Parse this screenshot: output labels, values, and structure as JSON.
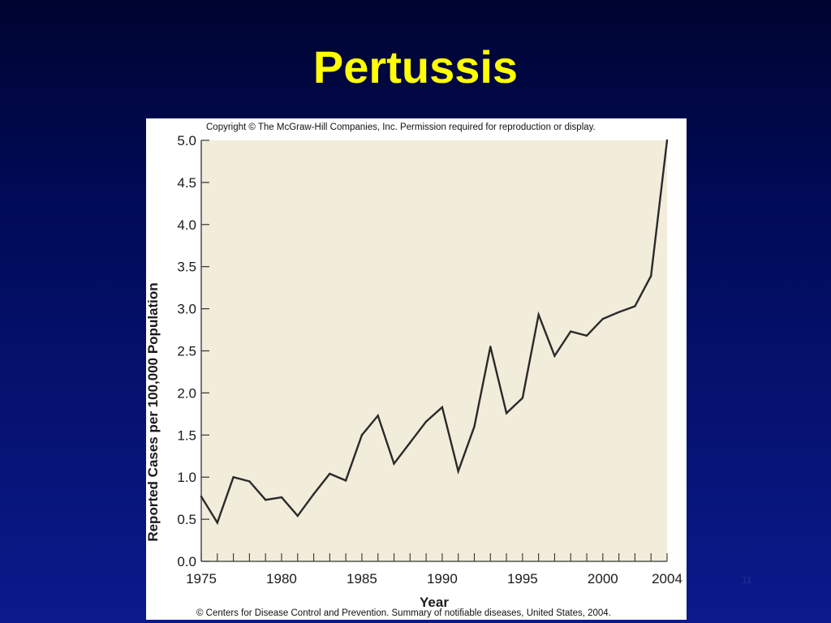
{
  "slide": {
    "title": "Pertussis",
    "page_number": "11",
    "colors": {
      "title": "#ffff00",
      "plot_background": "#f2ecdb",
      "line": "#2a2a2a",
      "background_top": "#000430",
      "background_bottom": "#0a1a8c"
    }
  },
  "figure": {
    "copyright": "Copyright © The McGraw-Hill Companies, Inc. Permission required for reproduction or display.",
    "source": "© Centers for Disease Control and Prevention. Summary of notifiable diseases, United States, 2004."
  },
  "chart_data": {
    "type": "line",
    "title": "",
    "xlabel": "Year",
    "ylabel": "Reported Cases per 100,000 Population",
    "xlim": [
      1975,
      2004
    ],
    "ylim": [
      0,
      5
    ],
    "x_ticks": [
      1975,
      1980,
      1985,
      1990,
      1995,
      2000,
      2004
    ],
    "y_ticks": [
      "0.0",
      "0.5",
      "1.0",
      "1.5",
      "2.0",
      "2.5",
      "3.0",
      "3.5",
      "4.0",
      "4.5",
      "5.0"
    ],
    "grid": false,
    "x": [
      1975,
      1976,
      1977,
      1978,
      1979,
      1980,
      1981,
      1982,
      1983,
      1984,
      1985,
      1986,
      1987,
      1988,
      1989,
      1990,
      1991,
      1992,
      1993,
      1994,
      1995,
      1996,
      1997,
      1998,
      1999,
      2000,
      2001,
      2002,
      2003,
      2004
    ],
    "series": [
      {
        "values": [
          0.77,
          0.46,
          1.0,
          0.95,
          0.73,
          0.76,
          0.54,
          0.8,
          1.04,
          0.96,
          1.5,
          1.73,
          1.16,
          1.41,
          1.66,
          1.83,
          1.07,
          1.6,
          2.55,
          1.76,
          1.94,
          2.93,
          2.44,
          2.73,
          2.68,
          2.88,
          2.96,
          3.03,
          3.39,
          5.0
        ]
      }
    ]
  }
}
